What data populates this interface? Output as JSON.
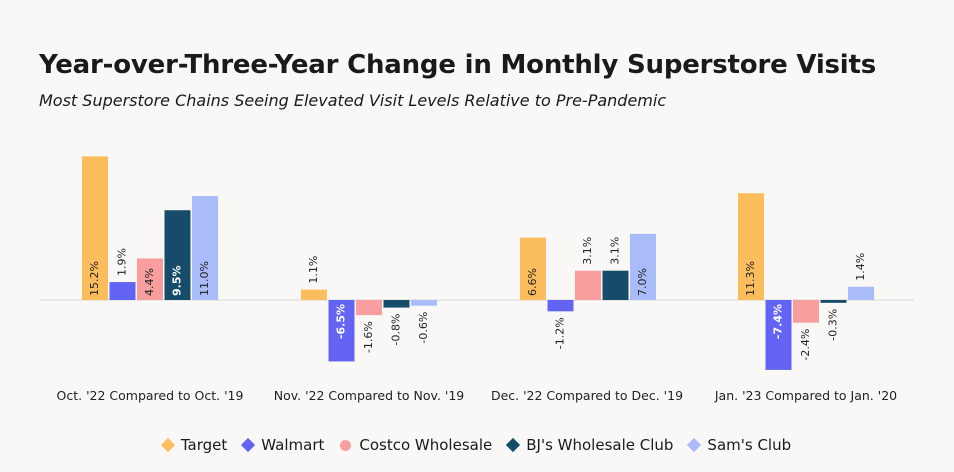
{
  "title": "Year-over-Three-Year Change in Monthly Superstore Visits",
  "subtitle": "Most Superstore Chains Seeing Elevated Visit Levels Relative to Pre-Pandemic",
  "chart_data": {
    "type": "bar",
    "categories": [
      "Oct. '22 Compared to Oct. '19",
      "Nov. '22 Compared to Nov. '19",
      "Dec. '22 Compared to Dec. '19",
      "Jan. '23 Compared to Jan. '20"
    ],
    "series": [
      {
        "name": "Target",
        "color": "#fcbe5c",
        "values": [
          15.2,
          1.1,
          6.6,
          11.3
        ],
        "labels": [
          "15.2%",
          "1.1%",
          "6.6%",
          "11.3%"
        ]
      },
      {
        "name": "Walmart",
        "color": "#6464f4",
        "values": [
          1.9,
          -6.5,
          -1.2,
          -7.4
        ],
        "labels": [
          "1.9%",
          "-6.5%",
          "-1.2%",
          "-7.4%"
        ]
      },
      {
        "name": "Costco Wholesale",
        "color": "#f99e9e",
        "values": [
          4.4,
          -1.6,
          3.1,
          -2.4
        ],
        "labels": [
          "4.4%",
          "-1.6%",
          "3.1%",
          "-2.4%"
        ]
      },
      {
        "name": "BJ's Wholesale Club",
        "color": "#164b69",
        "values": [
          9.5,
          -0.8,
          3.1,
          -0.3
        ],
        "labels": [
          "9.5%",
          "-0.8%",
          "3.1%",
          "-0.3%"
        ]
      },
      {
        "name": "Sam's Club",
        "color": "#a9bbf9",
        "values": [
          11.0,
          -0.6,
          7.0,
          1.4
        ],
        "labels": [
          "11.0%",
          "-0.6%",
          "7.0%",
          "1.4%"
        ]
      }
    ],
    "ylim": [
      -7.4,
      15.2
    ],
    "grid": false,
    "legend_position": "bottom-center"
  }
}
